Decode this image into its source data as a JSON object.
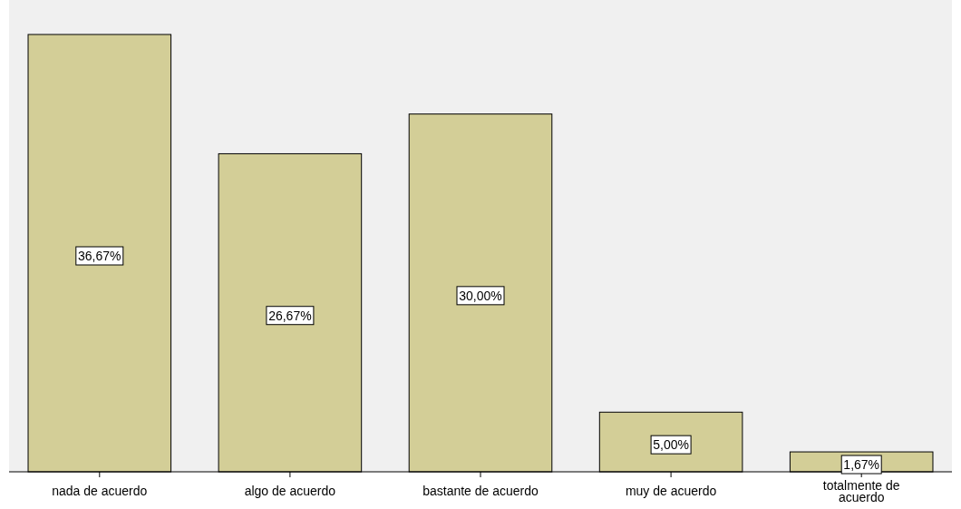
{
  "chart_data": {
    "type": "bar",
    "categories": [
      "nada de acuerdo",
      "algo de acuerdo",
      "bastante de acuerdo",
      "muy de acuerdo",
      "totalmente de acuerdo"
    ],
    "values": [
      36.67,
      26.67,
      30.0,
      5.0,
      1.67
    ],
    "value_labels": [
      "36,67%",
      "26,67%",
      "30,00%",
      "5,00%",
      "1,67%"
    ],
    "color": "#d3ce97"
  }
}
